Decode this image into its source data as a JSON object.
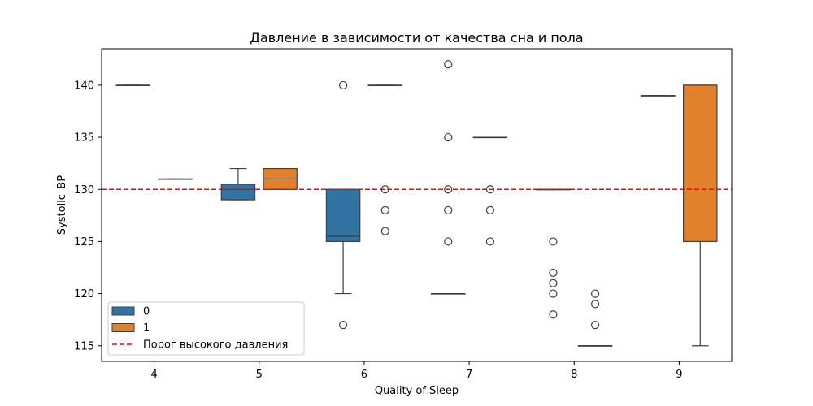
{
  "chart_data": {
    "type": "box",
    "title": "Давление в зависимости от качества сна и пола",
    "xlabel": "Quality of Sleep",
    "ylabel": "Systolic_BP",
    "categories": [
      "4",
      "5",
      "6",
      "7",
      "8",
      "9"
    ],
    "ylim": [
      113.5,
      143.5
    ],
    "yticks": [
      115,
      120,
      125,
      130,
      135,
      140
    ],
    "grid": false,
    "legend_position": "lower-left",
    "hue_colors": {
      "0": "#3274a1",
      "1": "#e1812c"
    },
    "series": [
      {
        "name": "0",
        "boxes": [
          {
            "category": "4",
            "whislo": 140,
            "q1": 140,
            "med": 140,
            "q3": 140,
            "whishi": 140,
            "fliers": []
          },
          {
            "category": "5",
            "whislo": 129,
            "q1": 129,
            "med": 130,
            "q3": 130.5,
            "whishi": 132,
            "fliers": []
          },
          {
            "category": "6",
            "whislo": 120,
            "q1": 125,
            "med": 125.5,
            "q3": 130,
            "whishi": 130,
            "fliers": [
              140,
              117
            ]
          },
          {
            "category": "7",
            "whislo": 120,
            "q1": 120,
            "med": 120,
            "q3": 120,
            "whishi": 120,
            "fliers": [
              142,
              135,
              130,
              128,
              125
            ]
          },
          {
            "category": "8",
            "whislo": 130,
            "q1": 130,
            "med": 130,
            "q3": 130,
            "whishi": 130,
            "fliers": [
              125,
              122,
              121,
              120,
              118
            ]
          },
          {
            "category": "9",
            "whislo": 139,
            "q1": 139,
            "med": 139,
            "q3": 139,
            "whishi": 139,
            "fliers": []
          }
        ]
      },
      {
        "name": "1",
        "boxes": [
          {
            "category": "4",
            "whislo": 131,
            "q1": 131,
            "med": 131,
            "q3": 131,
            "whishi": 131,
            "fliers": []
          },
          {
            "category": "5",
            "whislo": 130,
            "q1": 130,
            "med": 131,
            "q3": 132,
            "whishi": 132,
            "fliers": []
          },
          {
            "category": "6",
            "whislo": 140,
            "q1": 140,
            "med": 140,
            "q3": 140,
            "whishi": 140,
            "fliers": [
              130,
              128,
              126
            ]
          },
          {
            "category": "7",
            "whislo": 135,
            "q1": 135,
            "med": 135,
            "q3": 135,
            "whishi": 135,
            "fliers": [
              130,
              128,
              125
            ]
          },
          {
            "category": "8",
            "whislo": 115,
            "q1": 115,
            "med": 115,
            "q3": 115,
            "whishi": 115,
            "fliers": [
              120,
              119,
              117
            ]
          },
          {
            "category": "9",
            "whislo": 115,
            "q1": 125,
            "med": 140,
            "q3": 140,
            "whishi": 140,
            "fliers": []
          }
        ]
      }
    ],
    "reference_line": {
      "y": 130,
      "label": "Порог высокого давления",
      "color": "#ff0000",
      "style": "dashed"
    },
    "legend": [
      {
        "label": "0",
        "kind": "patch",
        "color": "#3274a1"
      },
      {
        "label": "1",
        "kind": "patch",
        "color": "#e1812c"
      },
      {
        "label": "Порог высокого давления",
        "kind": "line",
        "color": "#ff0000"
      }
    ]
  }
}
